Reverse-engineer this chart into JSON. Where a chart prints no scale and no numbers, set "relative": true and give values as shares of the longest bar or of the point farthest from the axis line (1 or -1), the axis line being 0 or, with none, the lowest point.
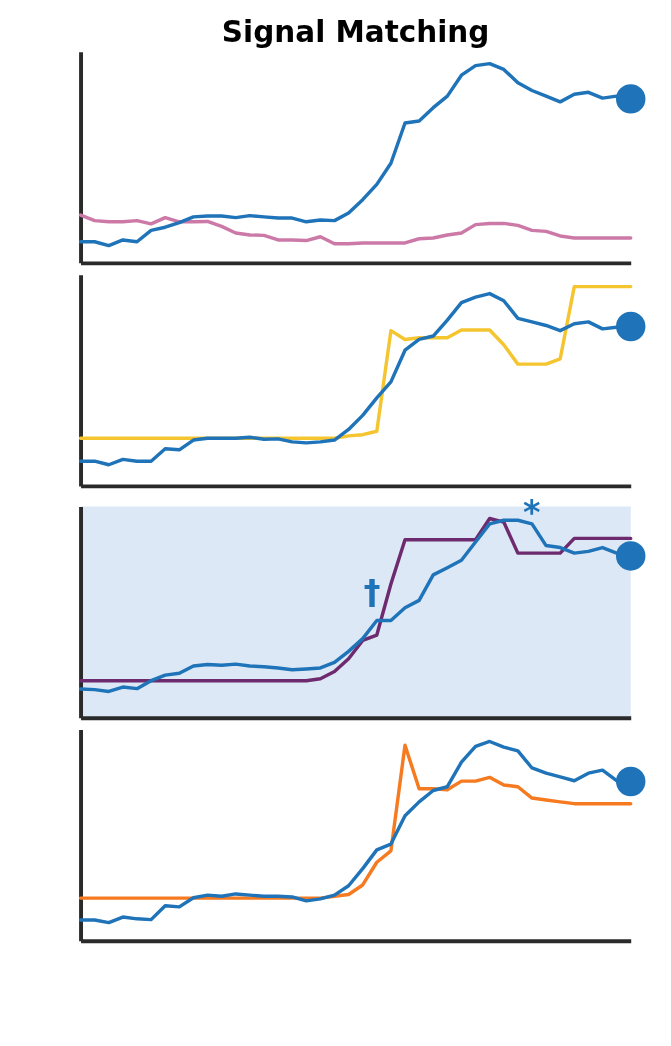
{
  "chart_data": [
    {
      "type": "line",
      "title": "Signal Matching",
      "relative": true,
      "tick_labels": false,
      "categories": [
        null,
        null,
        null,
        null,
        null,
        null,
        null,
        null,
        null,
        null,
        null,
        null,
        null,
        null,
        null,
        null,
        null,
        null,
        null,
        null,
        null,
        null,
        null,
        null,
        null,
        null,
        null,
        null,
        null,
        null,
        null,
        null,
        null,
        null,
        null,
        null,
        null,
        null,
        null,
        null
      ],
      "series": [
        {
          "color": "#cc79a7",
          "values": [
            0.24,
            0.212,
            0.206,
            0.206,
            0.212,
            0.196,
            0.227,
            0.206,
            0.206,
            0.208,
            0.183,
            0.15,
            0.14,
            0.138,
            0.115,
            0.115,
            0.112,
            0.131,
            0.096,
            0.096,
            0.1,
            0.1,
            0.1,
            0.1,
            0.121,
            0.125,
            0.14,
            0.15,
            0.192,
            0.198,
            0.198,
            0.188,
            0.163,
            0.158,
            0.135,
            0.125,
            0.125,
            0.125,
            0.125,
            0.125
          ]
        },
        {
          "color": "#1f73b8",
          "values": [
            0.106,
            0.106,
            0.087,
            0.115,
            0.106,
            0.163,
            0.179,
            0.202,
            0.231,
            0.235,
            0.235,
            0.227,
            0.237,
            0.231,
            0.225,
            0.225,
            0.206,
            0.215,
            0.212,
            0.25,
            0.317,
            0.394,
            0.5,
            0.702,
            0.712,
            0.779,
            0.837,
            0.942,
            0.99,
            1.0,
            0.971,
            0.904,
            0.865,
            0.837,
            0.808,
            0.846,
            0.856,
            0.827,
            0.837,
            0.823
          ]
        }
      ]
    },
    {
      "type": "line",
      "relative": true,
      "tick_labels": false,
      "categories": [
        null,
        null,
        null,
        null,
        null,
        null,
        null,
        null,
        null,
        null,
        null,
        null,
        null,
        null,
        null,
        null,
        null,
        null,
        null,
        null,
        null,
        null,
        null,
        null,
        null,
        null,
        null,
        null,
        null,
        null,
        null,
        null,
        null,
        null,
        null,
        null,
        null,
        null,
        null,
        null
      ],
      "series": [
        {
          "color": "#f5c530",
          "values": [
            0.239,
            0.239,
            0.239,
            0.239,
            0.239,
            0.239,
            0.239,
            0.239,
            0.239,
            0.239,
            0.239,
            0.239,
            0.239,
            0.239,
            0.239,
            0.239,
            0.239,
            0.239,
            0.239,
            0.251,
            0.257,
            0.274,
            0.779,
            0.735,
            0.743,
            0.743,
            0.743,
            0.782,
            0.782,
            0.782,
            0.708,
            0.611,
            0.611,
            0.611,
            0.637,
            1.0,
            1.0,
            1.0,
            1.0,
            1.0
          ]
        },
        {
          "color": "#1f73b8",
          "values": [
            0.124,
            0.124,
            0.106,
            0.133,
            0.124,
            0.124,
            0.186,
            0.181,
            0.23,
            0.239,
            0.239,
            0.239,
            0.244,
            0.234,
            0.236,
            0.221,
            0.216,
            0.221,
            0.23,
            0.283,
            0.354,
            0.442,
            0.522,
            0.681,
            0.735,
            0.752,
            0.832,
            0.92,
            0.947,
            0.965,
            0.929,
            0.841,
            0.823,
            0.805,
            0.779,
            0.814,
            0.823,
            0.788,
            0.796,
            0.8
          ]
        }
      ]
    },
    {
      "type": "line",
      "relative": true,
      "tick_labels": false,
      "annotations": [
        "†",
        "*"
      ],
      "categories": [
        null,
        null,
        null,
        null,
        null,
        null,
        null,
        null,
        null,
        null,
        null,
        null,
        null,
        null,
        null,
        null,
        null,
        null,
        null,
        null,
        null,
        null,
        null,
        null,
        null,
        null,
        null,
        null,
        null,
        null,
        null,
        null,
        null,
        null,
        null,
        null,
        null,
        null,
        null,
        null
      ],
      "series": [
        {
          "color": "#6e2a6e",
          "values": [
            0.186,
            0.186,
            0.186,
            0.186,
            0.186,
            0.186,
            0.186,
            0.186,
            0.186,
            0.186,
            0.186,
            0.186,
            0.186,
            0.186,
            0.186,
            0.186,
            0.186,
            0.196,
            0.232,
            0.296,
            0.388,
            0.415,
            0.671,
            0.893,
            0.893,
            0.893,
            0.893,
            0.893,
            0.893,
            1.0,
            0.982,
            0.826,
            0.826,
            0.826,
            0.826,
            0.9,
            0.9,
            0.9,
            0.9,
            0.9
          ]
        },
        {
          "color": "#1f73b8",
          "values": [
            0.144,
            0.141,
            0.132,
            0.154,
            0.146,
            0.186,
            0.214,
            0.223,
            0.26,
            0.267,
            0.263,
            0.269,
            0.26,
            0.256,
            0.25,
            0.241,
            0.245,
            0.25,
            0.278,
            0.333,
            0.397,
            0.488,
            0.488,
            0.552,
            0.589,
            0.717,
            0.753,
            0.79,
            0.882,
            0.973,
            0.991,
            0.991,
            0.973,
            0.864,
            0.854,
            0.826,
            0.835,
            0.854,
            0.826,
            0.812
          ]
        }
      ]
    },
    {
      "type": "line",
      "relative": true,
      "tick_labels": false,
      "categories": [
        null,
        null,
        null,
        null,
        null,
        null,
        null,
        null,
        null,
        null,
        null,
        null,
        null,
        null,
        null,
        null,
        null,
        null,
        null,
        null,
        null,
        null,
        null,
        null,
        null,
        null,
        null,
        null,
        null,
        null,
        null,
        null,
        null,
        null,
        null,
        null,
        null,
        null,
        null,
        null
      ],
      "series": [
        {
          "color": "#f57a20",
          "values": [
            0.214,
            0.214,
            0.214,
            0.214,
            0.214,
            0.214,
            0.214,
            0.214,
            0.214,
            0.214,
            0.214,
            0.214,
            0.214,
            0.214,
            0.214,
            0.214,
            0.214,
            0.214,
            0.223,
            0.232,
            0.28,
            0.394,
            0.451,
            0.981,
            0.763,
            0.763,
            0.758,
            0.801,
            0.801,
            0.82,
            0.782,
            0.773,
            0.716,
            0.706,
            0.697,
            0.688,
            0.688,
            0.688,
            0.688,
            0.688
          ]
        },
        {
          "color": "#1f73b8",
          "values": [
            0.104,
            0.104,
            0.091,
            0.119,
            0.11,
            0.106,
            0.176,
            0.17,
            0.216,
            0.229,
            0.223,
            0.235,
            0.229,
            0.223,
            0.223,
            0.22,
            0.2,
            0.21,
            0.229,
            0.276,
            0.362,
            0.456,
            0.485,
            0.627,
            0.697,
            0.754,
            0.773,
            0.896,
            0.976,
            1.0,
            0.972,
            0.953,
            0.867,
            0.841,
            0.822,
            0.803,
            0.841,
            0.856,
            0.803,
            0.799
          ]
        }
      ]
    }
  ]
}
